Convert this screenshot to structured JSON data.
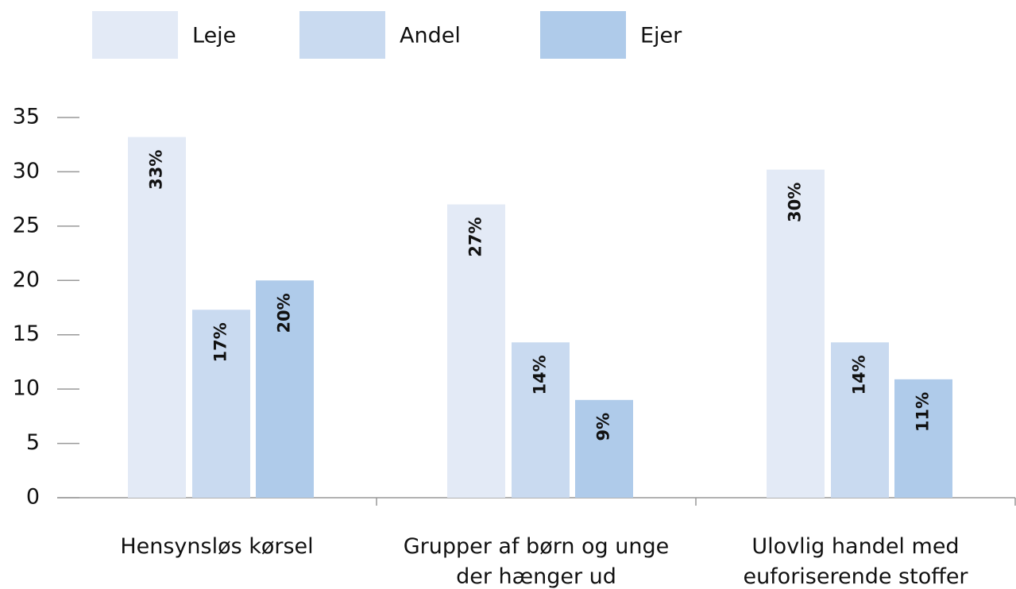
{
  "chart_data": {
    "type": "bar",
    "categories": [
      "Hensynsløs kørsel",
      "Grupper af børn og unge der hænger ud",
      "Ulovlig handel med euforiserende stoffer"
    ],
    "series": [
      {
        "name": "Leje",
        "color": "#e3eaf6",
        "values": [
          33.2,
          27,
          30.2
        ],
        "value_labels": [
          "33%",
          "27%",
          "30%"
        ]
      },
      {
        "name": "Andel",
        "color": "#c9daf0",
        "values": [
          17.3,
          14.3,
          14.3
        ],
        "value_labels": [
          "17%",
          "14%",
          "14%"
        ]
      },
      {
        "name": "Ejer",
        "color": "#afcbea",
        "values": [
          20,
          9,
          10.9
        ],
        "value_labels": [
          "20%",
          "9%",
          "11%"
        ]
      }
    ],
    "ylim": [
      0,
      35
    ],
    "yticks": [
      0,
      5,
      10,
      15,
      20,
      25,
      30,
      35
    ],
    "grid": false,
    "legend": "top"
  }
}
